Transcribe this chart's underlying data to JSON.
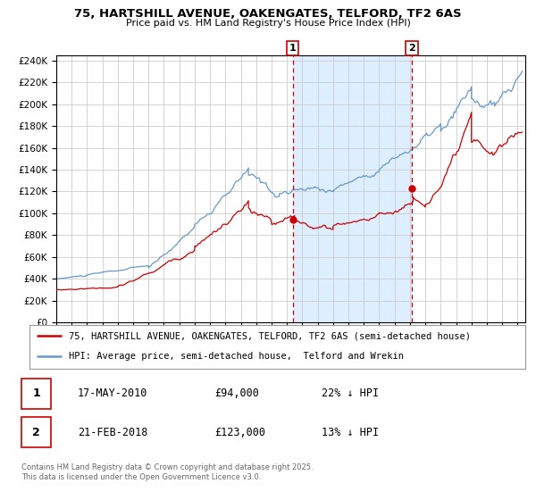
{
  "title1": "75, HARTSHILL AVENUE, OAKENGATES, TELFORD, TF2 6AS",
  "title2": "Price paid vs. HM Land Registry's House Price Index (HPI)",
  "legend_red": "75, HARTSHILL AVENUE, OAKENGATES, TELFORD, TF2 6AS (semi-detached house)",
  "legend_blue": "HPI: Average price, semi-detached house,  Telford and Wrekin",
  "annotation1_label": "1",
  "annotation1_date": "17-MAY-2010",
  "annotation1_price": "£94,000",
  "annotation1_hpi": "22% ↓ HPI",
  "annotation2_label": "2",
  "annotation2_date": "21-FEB-2018",
  "annotation2_price": "£123,000",
  "annotation2_hpi": "13% ↓ HPI",
  "footer": "Contains HM Land Registry data © Crown copyright and database right 2025.\nThis data is licensed under the Open Government Licence v3.0.",
  "red_color": "#cc0000",
  "blue_color": "#6699cc",
  "shading_color": "#ddeeff",
  "vline_color": "#cc0000",
  "background_color": "#ffffff",
  "grid_color": "#cccccc",
  "marker1_x": 2010.38,
  "marker1_y": 94000,
  "marker2_x": 2018.13,
  "marker2_y": 123000,
  "vline1_x": 2010.38,
  "vline2_x": 2018.13,
  "ylim": [
    0,
    245000
  ],
  "xlim": [
    1995,
    2025.5
  ]
}
